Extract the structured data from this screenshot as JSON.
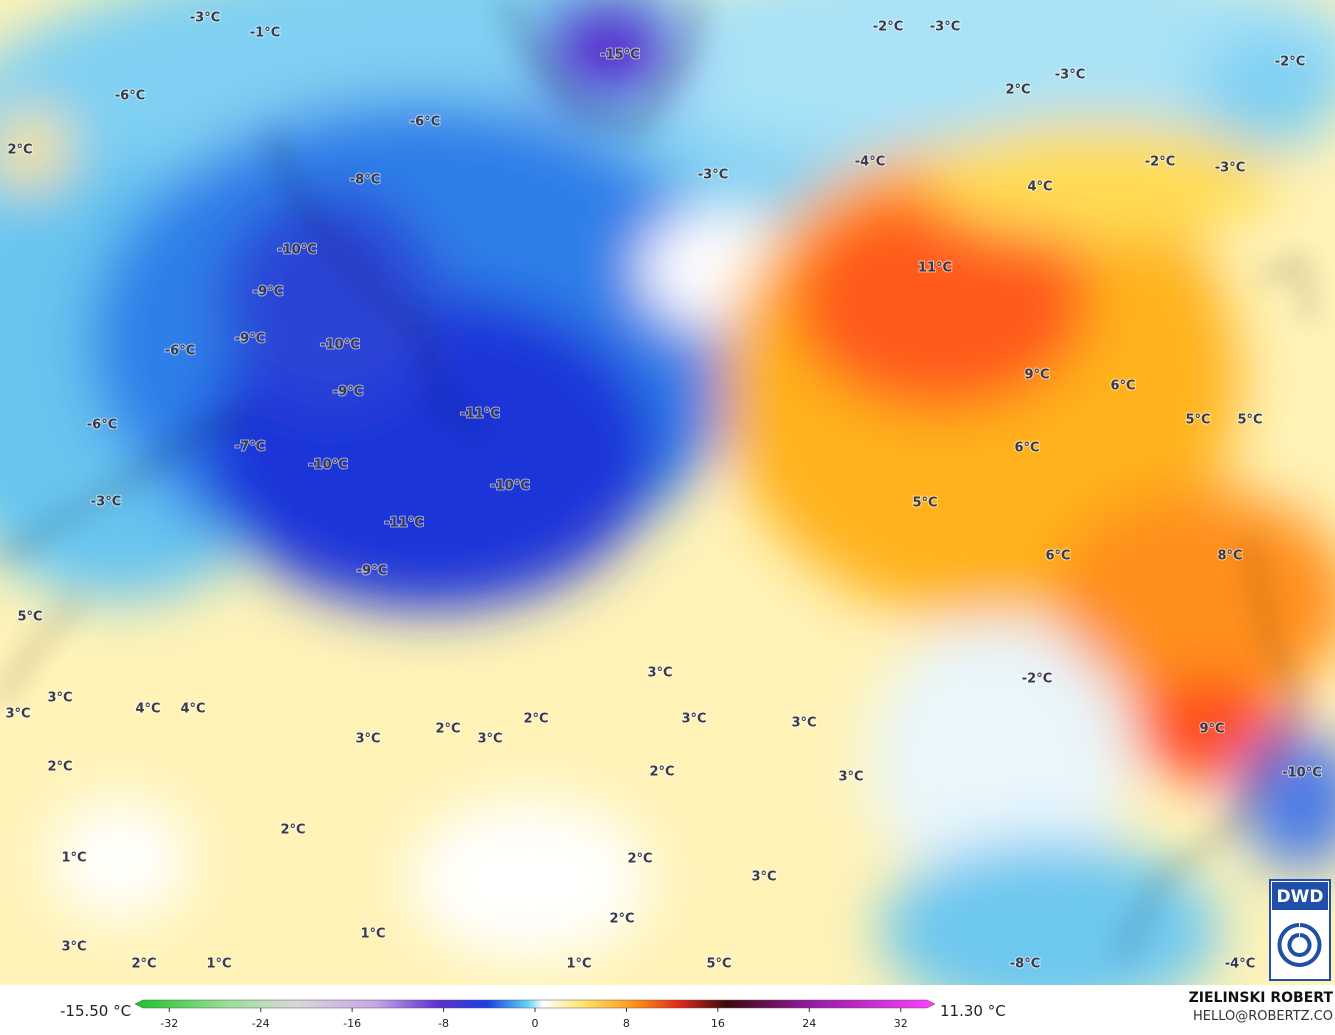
{
  "map_labels": [
    "-3°C",
    "-1°C",
    "-15°C",
    "-2°C",
    "-3°C",
    "-2°C",
    "-3°C",
    "2°C",
    "-6°C",
    "-6°C",
    "2°C",
    "-4°C",
    "-3°C",
    "-2°C",
    "-3°C",
    "-8°C",
    "4°C",
    "-10°C",
    "11°C",
    "-9°C",
    "-6°C",
    "-9°C",
    "-10°C",
    "9°C",
    "6°C",
    "-9°C",
    "-11°C",
    "-6°C",
    "5°C",
    "5°C",
    "-7°C",
    "6°C",
    "-10°C",
    "-10°C",
    "5°C",
    "-3°C",
    "-11°C",
    "6°C",
    "8°C",
    "-9°C",
    "5°C",
    "3°C",
    "-2°C",
    "3°C",
    "4°C",
    "4°C",
    "3°C",
    "2°C",
    "3°C",
    "3°C",
    "2°C",
    "3°C",
    "9°C",
    "3°C",
    "2°C",
    "2°C",
    "-10°C",
    "3°C",
    "2°C",
    "1°C",
    "2°C",
    "3°C",
    "2°C",
    "1°C",
    "3°C",
    "2°C",
    "1°C",
    "1°C",
    "5°C",
    "-8°C",
    "-4°C"
  ],
  "colorbar": {
    "lim": [
      -35,
      35
    ],
    "ticks": [
      -32,
      -24,
      -16,
      -8,
      0,
      8,
      16,
      24,
      32
    ],
    "min_label": "-15.50 °C",
    "max_label": "11.30 °C"
  },
  "credit": {
    "name": "ZIELINSKI ROBERT",
    "email": "HELLO@ROBERTZ.CO"
  },
  "logo": "DWD"
}
